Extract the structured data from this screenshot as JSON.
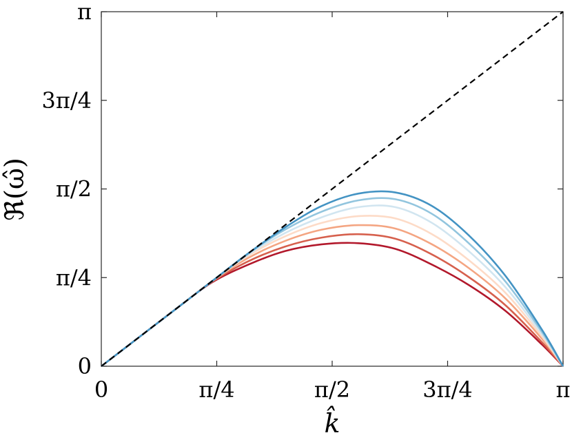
{
  "chart_data": {
    "type": "line",
    "title": "",
    "xlabel": "k̂",
    "ylabel": "ℜ(ω̂)",
    "xlim": [
      0,
      3.14159265
    ],
    "ylim": [
      0,
      3.14159265
    ],
    "grid": false,
    "legend": "none",
    "x_ticks": [
      {
        "value": 0,
        "label": "0"
      },
      {
        "value": 0.785398,
        "label": "π/4"
      },
      {
        "value": 1.570796,
        "label": "π/2"
      },
      {
        "value": 2.356194,
        "label": "3π/4"
      },
      {
        "value": 3.141593,
        "label": "π"
      }
    ],
    "y_ticks": [
      {
        "value": 0,
        "label": "0"
      },
      {
        "value": 0.785398,
        "label": "π/4"
      },
      {
        "value": 1.570796,
        "label": "π/2"
      },
      {
        "value": 2.356194,
        "label": "3π/4"
      },
      {
        "value": 3.141593,
        "label": "π"
      }
    ],
    "reference_line": {
      "x": [
        0,
        3.141593
      ],
      "y": [
        0,
        3.141593
      ],
      "color": "#000000",
      "style": "dashed"
    },
    "series": [
      {
        "color": "#b2182b",
        "x": [
          0,
          0.25,
          0.5,
          0.75,
          1.0,
          1.25,
          1.5,
          1.75,
          2.0,
          2.25,
          2.5,
          2.75,
          3.0,
          3.1416
        ],
        "y": [
          0,
          0.25,
          0.5,
          0.74,
          0.9,
          1.02,
          1.08,
          1.09,
          1.04,
          0.9,
          0.72,
          0.49,
          0.19,
          0
        ]
      },
      {
        "color": "#d6604d",
        "x": [
          0,
          0.25,
          0.5,
          0.75,
          1.0,
          1.25,
          1.5,
          1.75,
          2.0,
          2.25,
          2.5,
          2.75,
          3.0,
          3.1416
        ],
        "y": [
          0,
          0.25,
          0.5,
          0.745,
          0.93,
          1.06,
          1.14,
          1.17,
          1.13,
          0.99,
          0.79,
          0.54,
          0.21,
          0
        ]
      },
      {
        "color": "#f4a582",
        "x": [
          0,
          0.25,
          0.5,
          0.75,
          1.0,
          1.25,
          1.5,
          1.75,
          2.0,
          2.25,
          2.5,
          2.75,
          3.0,
          3.1416
        ],
        "y": [
          0,
          0.25,
          0.5,
          0.75,
          0.96,
          1.11,
          1.21,
          1.25,
          1.22,
          1.08,
          0.87,
          0.6,
          0.24,
          0
        ]
      },
      {
        "color": "#fddbc7",
        "x": [
          0,
          0.25,
          0.5,
          0.75,
          1.0,
          1.25,
          1.5,
          1.75,
          2.0,
          2.25,
          2.5,
          2.75,
          3.0,
          3.1416
        ],
        "y": [
          0,
          0.25,
          0.5,
          0.75,
          0.98,
          1.15,
          1.27,
          1.33,
          1.31,
          1.17,
          0.94,
          0.65,
          0.26,
          0
        ]
      },
      {
        "color": "#d1e5f0",
        "x": [
          0,
          0.25,
          0.5,
          0.75,
          1.0,
          1.25,
          1.5,
          1.75,
          2.0,
          2.25,
          2.5,
          2.75,
          3.0,
          3.1416
        ],
        "y": [
          0,
          0.25,
          0.5,
          0.75,
          0.99,
          1.18,
          1.32,
          1.41,
          1.41,
          1.27,
          1.02,
          0.7,
          0.28,
          0
        ]
      },
      {
        "color": "#92c5de",
        "x": [
          0,
          0.25,
          0.5,
          0.75,
          1.0,
          1.25,
          1.5,
          1.75,
          2.0,
          2.25,
          2.5,
          2.75,
          3.0,
          3.1416
        ],
        "y": [
          0,
          0.25,
          0.5,
          0.75,
          1.0,
          1.21,
          1.37,
          1.47,
          1.48,
          1.35,
          1.09,
          0.75,
          0.3,
          0
        ]
      },
      {
        "color": "#4393c3",
        "x": [
          0,
          0.25,
          0.5,
          0.75,
          1.0,
          1.25,
          1.5,
          1.75,
          2.0,
          2.25,
          2.5,
          2.75,
          3.0,
          3.1416
        ],
        "y": [
          0,
          0.25,
          0.5,
          0.75,
          1.0,
          1.23,
          1.42,
          1.53,
          1.54,
          1.42,
          1.16,
          0.8,
          0.32,
          0
        ]
      }
    ]
  }
}
